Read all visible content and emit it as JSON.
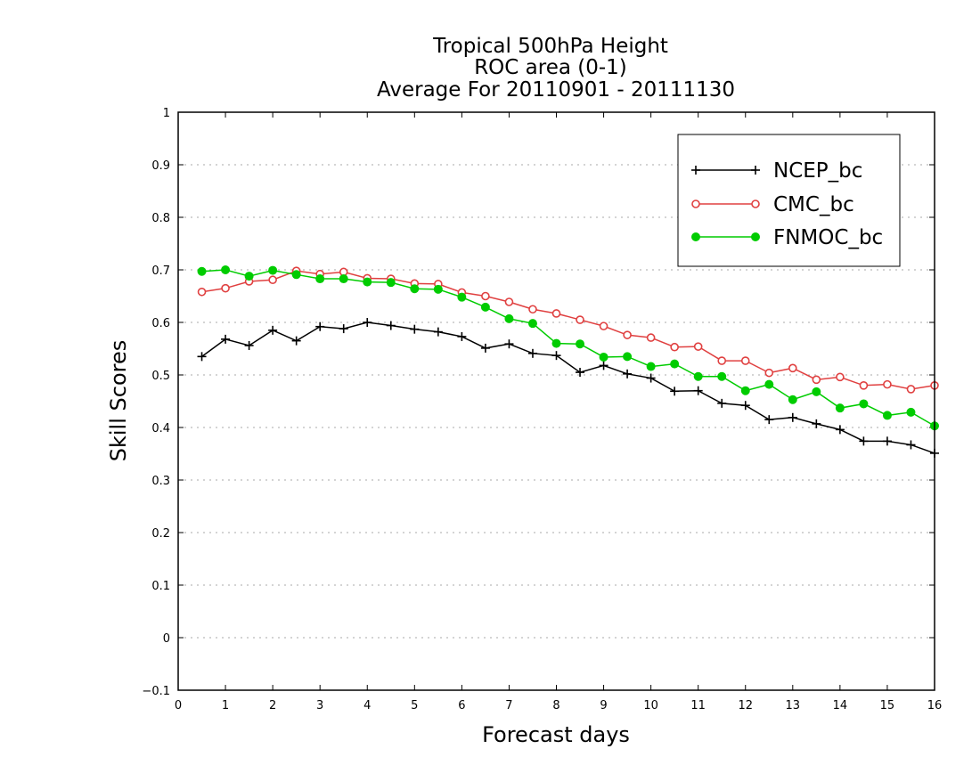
{
  "chart_data": {
    "type": "line",
    "title": [
      "Tropical 500hPa Height",
      "ROC area (0-1)",
      "Average For 20110901 - 20111130"
    ],
    "xlabel": "Forecast days",
    "ylabel": "Skill Scores",
    "xlim": [
      0,
      16
    ],
    "ylim": [
      -0.1,
      1
    ],
    "xticks": [
      "0",
      "1",
      "2",
      "3",
      "4",
      "5",
      "6",
      "7",
      "8",
      "9",
      "10",
      "11",
      "12",
      "13",
      "14",
      "15",
      "16"
    ],
    "yticks": [
      "−0.1",
      "0",
      "0.1",
      "0.2",
      "0.3",
      "0.4",
      "0.5",
      "0.6",
      "0.7",
      "0.8",
      "0.9",
      "1"
    ],
    "grid": "horizontal dotted",
    "legend_position": "top-right",
    "x": [
      0.5,
      1,
      1.5,
      2,
      2.5,
      3,
      3.5,
      4,
      4.5,
      5,
      5.5,
      6,
      6.5,
      7,
      7.5,
      8,
      8.5,
      9,
      9.5,
      10,
      10.5,
      11,
      11.5,
      12,
      12.5,
      13,
      13.5,
      14,
      14.5,
      15,
      15.5,
      16
    ],
    "series": [
      {
        "name": "NCEP_bc",
        "color": "#000000",
        "marker": "plus",
        "values": [
          0.535,
          0.568,
          0.556,
          0.585,
          0.565,
          0.592,
          0.588,
          0.6,
          0.594,
          0.587,
          0.582,
          0.573,
          0.551,
          0.559,
          0.541,
          0.537,
          0.505,
          0.518,
          0.502,
          0.494,
          0.469,
          0.47,
          0.446,
          0.442,
          0.415,
          0.419,
          0.407,
          0.396,
          0.374,
          0.374,
          0.367,
          0.351
        ]
      },
      {
        "name": "CMC_bc",
        "color": "#e04040",
        "marker": "open-circle",
        "values": [
          0.658,
          0.665,
          0.678,
          0.681,
          0.698,
          0.692,
          0.696,
          0.684,
          0.683,
          0.674,
          0.673,
          0.657,
          0.65,
          0.639,
          0.625,
          0.617,
          0.605,
          0.593,
          0.576,
          0.571,
          0.553,
          0.554,
          0.527,
          0.527,
          0.504,
          0.513,
          0.491,
          0.496,
          0.48,
          0.482,
          0.473,
          0.48
        ]
      },
      {
        "name": "FNMOC_bc",
        "color": "#00cc00",
        "marker": "filled-circle",
        "values": [
          0.697,
          0.7,
          0.688,
          0.699,
          0.691,
          0.683,
          0.683,
          0.677,
          0.676,
          0.664,
          0.663,
          0.648,
          0.629,
          0.607,
          0.598,
          0.56,
          0.559,
          0.534,
          0.535,
          0.516,
          0.521,
          0.497,
          0.497,
          0.47,
          0.482,
          0.453,
          0.468,
          0.437,
          0.445,
          0.423,
          0.429,
          0.403
        ]
      }
    ]
  }
}
